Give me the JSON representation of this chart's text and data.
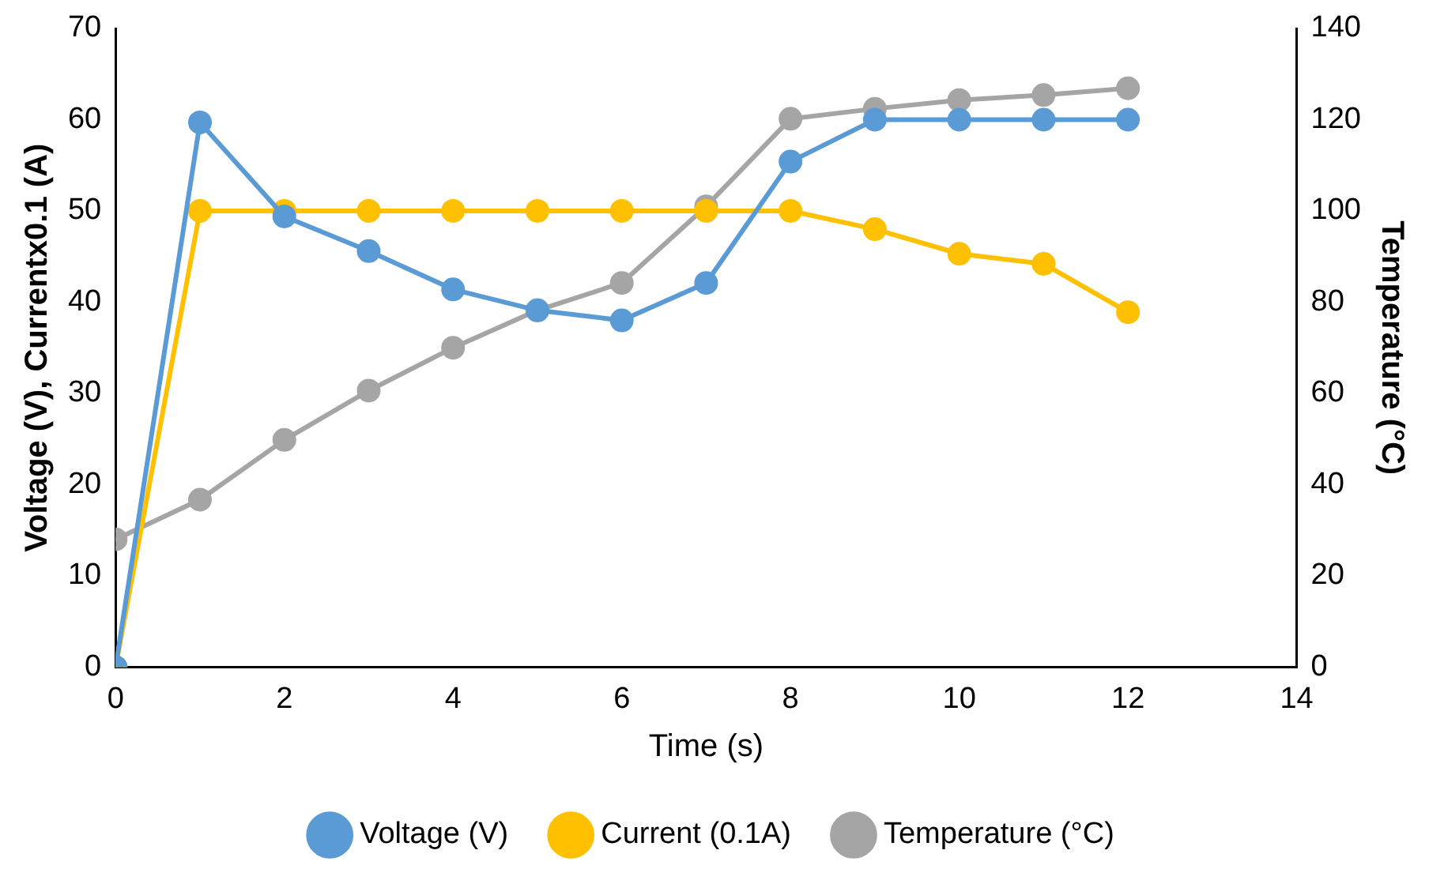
{
  "chart_data": {
    "type": "line",
    "xlabel": "Time (s)",
    "ylabel": "Voltage (V), Currentx0.1 (A)",
    "y2label": "Temperature (°C)",
    "x": [
      0,
      1,
      2,
      3,
      4,
      5,
      6,
      7,
      8,
      9,
      10,
      11,
      12
    ],
    "xlim": [
      0,
      14
    ],
    "xticks": [
      0,
      2,
      4,
      6,
      8,
      10,
      12,
      14
    ],
    "ylim": [
      0,
      70
    ],
    "yticks": [
      0,
      10,
      20,
      30,
      40,
      50,
      60,
      70
    ],
    "y2lim": [
      0,
      140
    ],
    "y2ticks": [
      0,
      20,
      40,
      60,
      80,
      100,
      120,
      140
    ],
    "series": [
      {
        "name": "Voltage (V)",
        "color": "#5b9bd5",
        "values": [
          0,
          59.7,
          49.4,
          45.6,
          41.4,
          39.1,
          38,
          42.1,
          55.4,
          60,
          60,
          60,
          60
        ]
      },
      {
        "name": "Current (0.1A)",
        "color": "#ffc000",
        "values": [
          0,
          50,
          50,
          50,
          50,
          50,
          50,
          50,
          50,
          48,
          45.3,
          44.2,
          38.9
        ]
      },
      {
        "name": "Temperature (°C)",
        "color": "#a5a5a5",
        "axis": "y2",
        "values": [
          28,
          36.7,
          49.8,
          60.6,
          70,
          78.2,
          84.2,
          101,
          120.2,
          122.4,
          124.3,
          125.4,
          126.9
        ]
      }
    ],
    "grid": false,
    "legend": "bottom",
    "marker": "circle",
    "line_style": "solid"
  }
}
